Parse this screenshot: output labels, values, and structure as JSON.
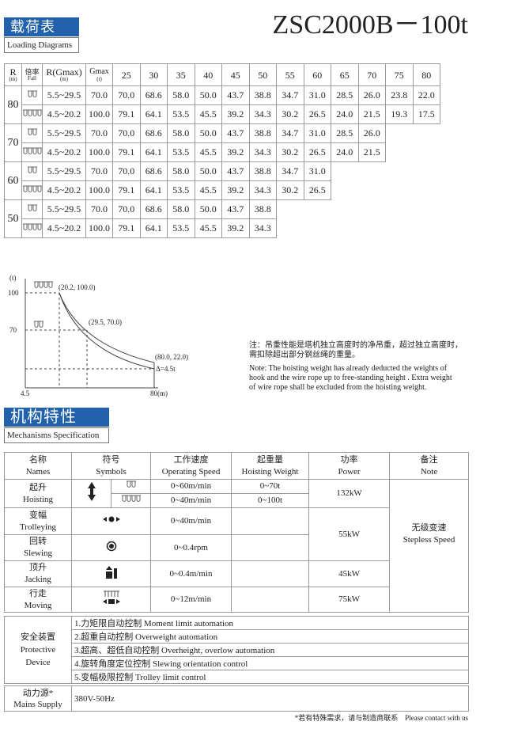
{
  "header": {
    "badge": "载荷表",
    "subtitle": "Loading Diagrams",
    "model": "ZSC2000B－100t"
  },
  "load_table": {
    "headers": {
      "r": "R",
      "r_unit": "(m)",
      "fall": "倍率",
      "fall_en": "Fall",
      "rgmax": "R(Gmax)",
      "rgmax_unit": "(m)",
      "gmax": "Gmax",
      "gmax_unit": "(t)"
    },
    "radii": [
      "25",
      "30",
      "35",
      "40",
      "45",
      "50",
      "55",
      "60",
      "65",
      "70",
      "75",
      "80"
    ],
    "groups": [
      {
        "r": "80",
        "rows": [
          {
            "range": "5.5~29.5",
            "gmax": "70.0",
            "loads": [
              "70.0",
              "68.6",
              "58.0",
              "50.0",
              "43.7",
              "38.8",
              "34.7",
              "31.0",
              "28.5",
              "26.0",
              "23.8",
              "22.0"
            ]
          },
          {
            "range": "4.5~20.2",
            "gmax": "100.0",
            "loads": [
              "79.1",
              "64.1",
              "53.5",
              "45.5",
              "39.2",
              "34.3",
              "30.2",
              "26.5",
              "24.0",
              "21.5",
              "19.3",
              "17.5"
            ]
          }
        ]
      },
      {
        "r": "70",
        "rows": [
          {
            "range": "5.5~29.5",
            "gmax": "70.0",
            "loads": [
              "70.0",
              "68.6",
              "58.0",
              "50.0",
              "43.7",
              "38.8",
              "34.7",
              "31.0",
              "28.5",
              "26.0"
            ]
          },
          {
            "range": "4.5~20.2",
            "gmax": "100.0",
            "loads": [
              "79.1",
              "64.1",
              "53.5",
              "45.5",
              "39.2",
              "34.3",
              "30.2",
              "26.5",
              "24.0",
              "21.5"
            ]
          }
        ]
      },
      {
        "r": "60",
        "rows": [
          {
            "range": "5.5~29.5",
            "gmax": "70.0",
            "loads": [
              "70.0",
              "68.6",
              "58.0",
              "50.0",
              "43.7",
              "38.8",
              "34.7",
              "31.0"
            ]
          },
          {
            "range": "4.5~20.2",
            "gmax": "100.0",
            "loads": [
              "79.1",
              "64.1",
              "53.5",
              "45.5",
              "39.2",
              "34.3",
              "30.2",
              "26.5"
            ]
          }
        ]
      },
      {
        "r": "50",
        "rows": [
          {
            "range": "5.5~29.5",
            "gmax": "70.0",
            "loads": [
              "70.0",
              "68.6",
              "58.0",
              "50.0",
              "43.7",
              "38.8"
            ]
          },
          {
            "range": "4.5~20.2",
            "gmax": "100.0",
            "loads": [
              "79.1",
              "64.1",
              "53.5",
              "45.5",
              "39.2",
              "34.3"
            ]
          }
        ]
      }
    ]
  },
  "diagram": {
    "y_unit": "(t)",
    "y_top": "100",
    "y_mid": "70",
    "p1": "(20.2, 100.0)",
    "p2": "(29.5, 70.0)",
    "p3": "(80.0, 22.0)",
    "delta": "Δ=4.5t",
    "x_start": "4.5",
    "x_end": "80(m)"
  },
  "note": {
    "zh": [
      "注：吊重性能是塔机独立高度时的净吊重，超过独立高度时，",
      "需扣除超出部分钢丝绳的重量。"
    ],
    "en": [
      "Note: The hoisting weight has already deducted the weights of",
      "hook and the wire rope up to free-standing height . Extra weight",
      "of wire rope shall be excluded from the hoisting weight."
    ]
  },
  "mechanisms": {
    "badge": "机构特性",
    "subtitle": "Mechanisms Specification",
    "headers": [
      [
        "名称",
        "Names"
      ],
      [
        "符号",
        "Symbols"
      ],
      [
        "工作速度",
        "Operating Speed"
      ],
      [
        "起重量",
        "Hoisting Weight"
      ],
      [
        "功率",
        "Power"
      ],
      [
        "备注",
        "Note"
      ]
    ],
    "hoisting": {
      "name": [
        "起升",
        "Hoisting"
      ],
      "speeds": [
        "0~60m/min",
        "0~40m/min"
      ],
      "weights": [
        "0~70t",
        "0~100t"
      ],
      "power": "132kW"
    },
    "trolleying": {
      "name": [
        "变幅",
        "Trolleying"
      ],
      "speed": "0~40m/min"
    },
    "slewing": {
      "name": [
        "回转",
        "Slewing"
      ],
      "speed": "0~0.4rpm"
    },
    "shared_power": "55kW",
    "jacking": {
      "name": [
        "顶升",
        "Jacking"
      ],
      "speed": "0~0.4m/min",
      "power": "45kW"
    },
    "moving": {
      "name": [
        "行走",
        "Moving"
      ],
      "speed": "0~12m/min",
      "power": "75kW"
    },
    "note": [
      "无级变速",
      "Stepless Speed"
    ]
  },
  "safety": {
    "label": [
      "安全装置",
      "Protective",
      "Device"
    ],
    "items": [
      "1.力矩限自动控制  Moment limit automation",
      "2.超重自动控制  Overweight automation",
      "3.超高、超低自动控制  Overheight, overlow automation",
      "4.旋转角度定位控制  Slewing orientation control",
      "5.变幅极限控制  Trolley limit control"
    ]
  },
  "mains": {
    "label": [
      "动力源*",
      "Mains Supply"
    ],
    "value": "380V-50Hz"
  },
  "footer": "*若有特殊需求，请与制造商联系    Please contact with us"
}
